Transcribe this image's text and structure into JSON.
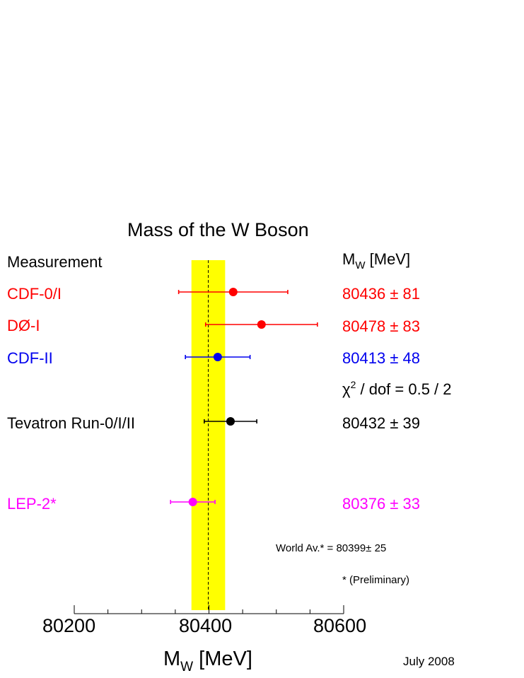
{
  "chart_data": {
    "type": "forest",
    "title": "Mass of the W Boson",
    "header": {
      "left": "Measurement",
      "right_main": "M",
      "right_sub": "W",
      "right_unit": "[MeV]"
    },
    "xlabel": {
      "main": "M",
      "sub": "W",
      "unit": "[MeV]"
    },
    "xlim": [
      80200,
      80600
    ],
    "xticks": [
      80200,
      80400,
      80600
    ],
    "xtick_labels": [
      "80200",
      "80400",
      "80600"
    ],
    "band": {
      "center": 80399,
      "error": 25,
      "color": "#ffff00"
    },
    "measurements": [
      {
        "name": "CDF-0/I",
        "value": 80436,
        "error": 81,
        "color": "#ff0000",
        "value_label": "80436",
        "pm": "±",
        "err_label": "81"
      },
      {
        "name": "DØ-I",
        "value": 80478,
        "error": 83,
        "color": "#ff0000",
        "value_label": "80478",
        "pm": "±",
        "err_label": "83"
      },
      {
        "name": "CDF-II",
        "value": 80413,
        "error": 48,
        "color": "#0000ee",
        "value_label": "80413",
        "pm": "±",
        "err_label": "48"
      },
      {
        "name": "Tevatron Run-0/I/II",
        "value": 80432,
        "error": 39,
        "color": "#000000",
        "value_label": "80432",
        "pm": "±",
        "err_label": "39"
      },
      {
        "name": "LEP-2*",
        "value": 80376,
        "error": 33,
        "color": "#ff00ff",
        "value_label": "80376",
        "pm": "±",
        "err_label": "33"
      }
    ],
    "chi2": {
      "symbol": "χ",
      "power": "2",
      "text": "/ dof = 0.5 / 2"
    },
    "world_average": "World Av.* = 80399± 25",
    "preliminary_note": "* (Preliminary)",
    "date": "July 2008"
  }
}
